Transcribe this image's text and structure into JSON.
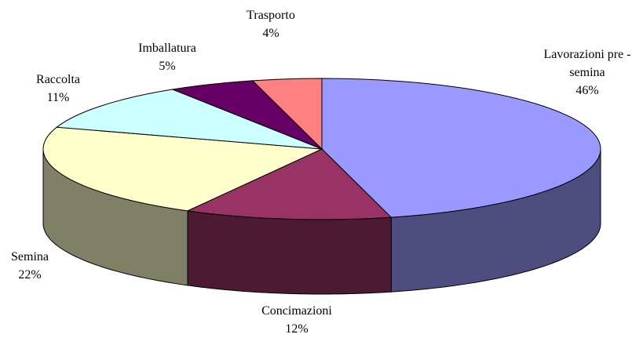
{
  "chart_data": {
    "type": "pie3d",
    "categories": [
      "Lavorazioni pre - semina",
      "Concimazioni",
      "Semina",
      "Raccolta",
      "Imballatura",
      "Trasporto"
    ],
    "values": [
      46,
      12,
      22,
      11,
      5,
      4
    ],
    "value_labels": [
      "46%",
      "12%",
      "22%",
      "11%",
      "5%",
      "4%"
    ],
    "colors": [
      "#9999ff",
      "#993366",
      "#ffffcc",
      "#ccffff",
      "#660066",
      "#ff8080"
    ]
  }
}
